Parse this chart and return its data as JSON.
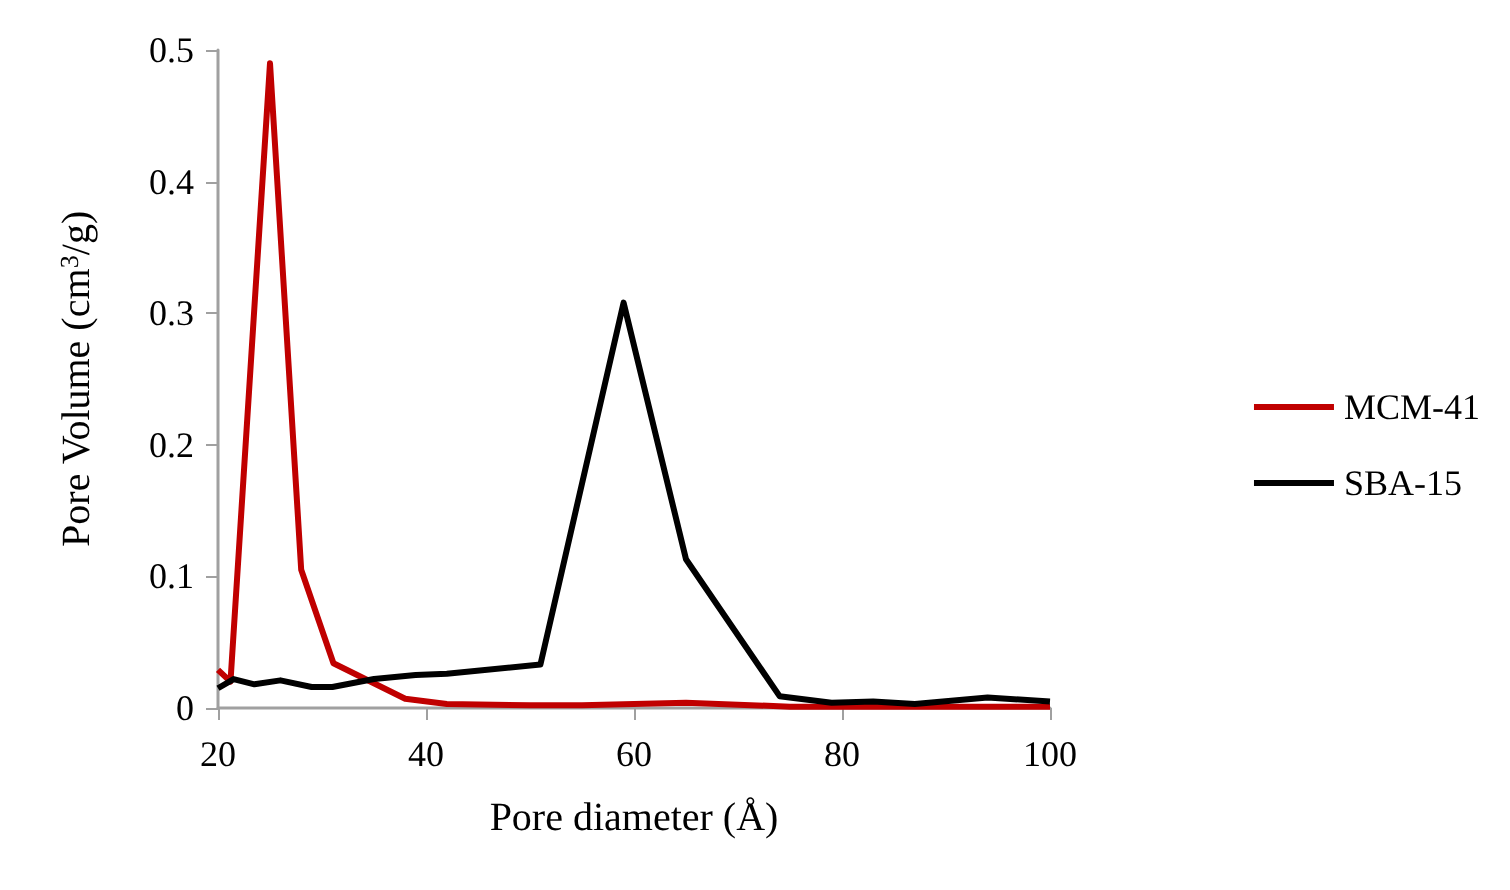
{
  "chart_data": {
    "type": "line",
    "xlabel": "Pore diameter (Å)",
    "ylabel": "Pore Volume (cm$^{3}$/g)",
    "xlim": [
      20,
      100
    ],
    "xticks": [
      20,
      40,
      60,
      80,
      100
    ],
    "ylim": [
      0,
      0.5
    ],
    "yticks": [
      0,
      0.1,
      0.2,
      0.3,
      0.4,
      0.5
    ],
    "grid": false,
    "legend": "right",
    "marker": "none",
    "line_style": "solid",
    "series": [
      {
        "name": "MCM-41",
        "color": "#c00000",
        "x": [
          20,
          21.2,
          25,
          28,
          31.1,
          38,
          42,
          50,
          55,
          65,
          75,
          100
        ],
        "values": [
          0.029,
          0.02,
          0.49,
          0.105,
          0.034,
          0.007,
          0.003,
          0.002,
          0.002,
          0.004,
          0.001,
          0.001
        ]
      },
      {
        "name": "SBA-15",
        "color": "#000000",
        "x": [
          20,
          21.5,
          23.5,
          26,
          29,
          31,
          35,
          39,
          42,
          51,
          59,
          65,
          74,
          79,
          83,
          87,
          94,
          100
        ],
        "values": [
          0.015,
          0.022,
          0.018,
          0.021,
          0.016,
          0.016,
          0.022,
          0.025,
          0.026,
          0.033,
          0.308,
          0.113,
          0.009,
          0.004,
          0.005,
          0.003,
          0.008,
          0.005
        ]
      }
    ]
  }
}
